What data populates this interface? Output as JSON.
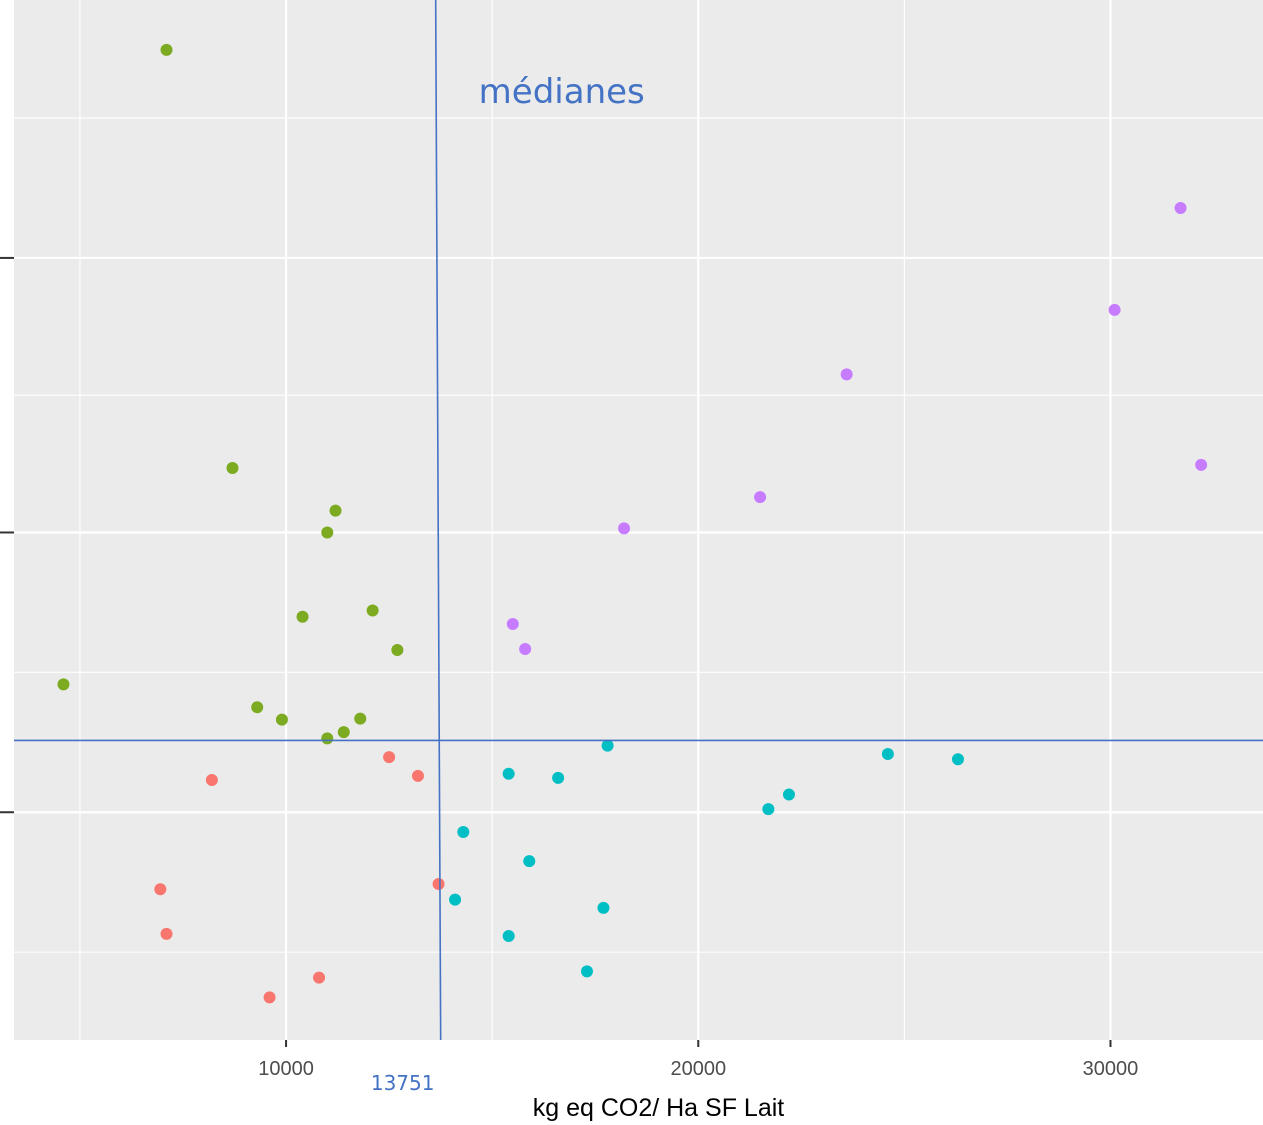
{
  "chart_data": {
    "type": "scatter",
    "xlabel": "kg eq CO2/ Ha SF Lait",
    "ylabel": "",
    "xlim": [
      3400,
      33700
    ],
    "ylim": [
      0,
      100
    ],
    "x_ticks": [
      {
        "value": 10000,
        "label": "10000"
      },
      {
        "value": 20000,
        "label": "20000"
      },
      {
        "value": 30000,
        "label": "30000"
      }
    ],
    "y_ticks_unlabeled": [
      21.9,
      48.8,
      75.2
    ],
    "grid": true,
    "annotations": {
      "median_label": "médianes",
      "median_x_value": 13751,
      "median_x_label": "13751",
      "median_y_value": 28.8
    },
    "colors": {
      "panel": "#ebebeb",
      "grid_major": "#ffffff",
      "median_line": "#4472c4",
      "median_text": "#4472c4"
    },
    "series": [
      {
        "color": "#7caa21",
        "points": [
          {
            "x": 7100,
            "y": 95.2
          },
          {
            "x": 8700,
            "y": 55.0
          },
          {
            "x": 11200,
            "y": 50.9
          },
          {
            "x": 11000,
            "y": 48.8
          },
          {
            "x": 10400,
            "y": 40.7
          },
          {
            "x": 12100,
            "y": 41.3
          },
          {
            "x": 12700,
            "y": 37.5
          },
          {
            "x": 4600,
            "y": 34.2
          },
          {
            "x": 9300,
            "y": 32.0
          },
          {
            "x": 9900,
            "y": 30.8
          },
          {
            "x": 11800,
            "y": 30.9
          },
          {
            "x": 11400,
            "y": 29.6
          },
          {
            "x": 11000,
            "y": 29.0
          }
        ]
      },
      {
        "color": "#f8766d",
        "points": [
          {
            "x": 12500,
            "y": 27.2
          },
          {
            "x": 13200,
            "y": 25.4
          },
          {
            "x": 8200,
            "y": 25.0
          },
          {
            "x": 13700,
            "y": 15.0
          },
          {
            "x": 6950,
            "y": 14.5
          },
          {
            "x": 7100,
            "y": 10.2
          },
          {
            "x": 10800,
            "y": 6.0
          },
          {
            "x": 9600,
            "y": 4.1
          }
        ]
      },
      {
        "color": "#00bfc4",
        "points": [
          {
            "x": 17800,
            "y": 28.3
          },
          {
            "x": 24600,
            "y": 27.5
          },
          {
            "x": 26300,
            "y": 27.0
          },
          {
            "x": 15400,
            "y": 25.6
          },
          {
            "x": 16600,
            "y": 25.2
          },
          {
            "x": 22200,
            "y": 23.6
          },
          {
            "x": 21700,
            "y": 22.2
          },
          {
            "x": 14300,
            "y": 20.0
          },
          {
            "x": 15900,
            "y": 17.2
          },
          {
            "x": 14100,
            "y": 13.5
          },
          {
            "x": 17700,
            "y": 12.7
          },
          {
            "x": 15400,
            "y": 10.0
          },
          {
            "x": 17300,
            "y": 6.6
          }
        ]
      },
      {
        "color": "#c77cff",
        "points": [
          {
            "x": 31700,
            "y": 80.0
          },
          {
            "x": 30100,
            "y": 70.2
          },
          {
            "x": 23600,
            "y": 64.0
          },
          {
            "x": 32200,
            "y": 55.3
          },
          {
            "x": 21500,
            "y": 52.2
          },
          {
            "x": 18200,
            "y": 49.2
          },
          {
            "x": 15500,
            "y": 40.0
          },
          {
            "x": 15800,
            "y": 37.6
          }
        ]
      }
    ]
  }
}
